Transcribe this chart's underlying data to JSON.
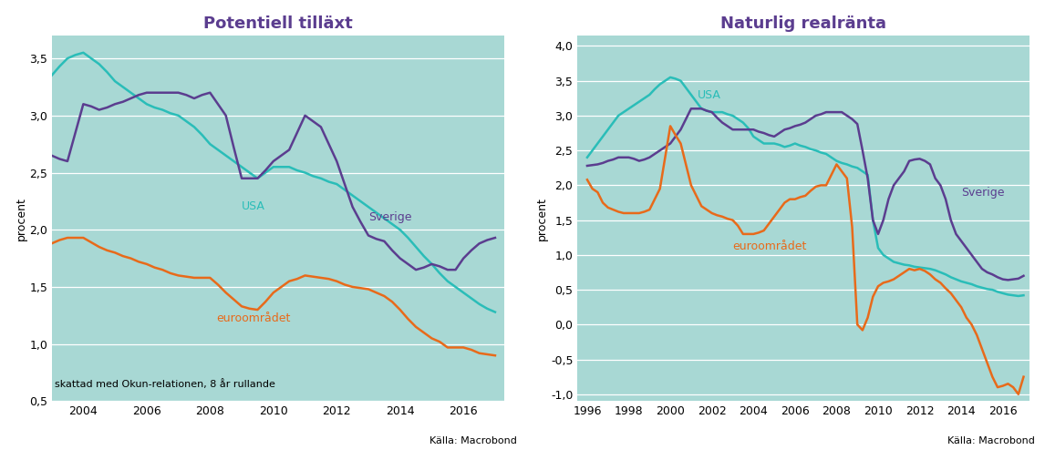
{
  "title1": "Potentiell tilläxt",
  "title2": "Naturlig realränta",
  "ylabel": "procent",
  "bg_color": "#A8D8D4",
  "teal_color": "#2ABDB8",
  "purple_color": "#5B3D8F",
  "orange_color": "#E86A1A",
  "source": "Källa: Macrobond",
  "note1": "skattad med Okun-relationen, 8 år rullande",
  "left_xlim": [
    2003.0,
    2017.3
  ],
  "left_ylim": [
    0.5,
    3.7
  ],
  "left_yticks": [
    0.5,
    1.0,
    1.5,
    2.0,
    2.5,
    3.0,
    3.5
  ],
  "right_xlim": [
    1995.5,
    2017.3
  ],
  "right_ylim": [
    -1.1,
    4.15
  ],
  "right_yticks": [
    -1.0,
    -0.5,
    0.0,
    0.5,
    1.0,
    1.5,
    2.0,
    2.5,
    3.0,
    3.5,
    4.0
  ],
  "left_usa_x": [
    2003.0,
    2003.25,
    2003.5,
    2003.75,
    2004.0,
    2004.25,
    2004.5,
    2004.75,
    2005.0,
    2005.25,
    2005.5,
    2005.75,
    2006.0,
    2006.25,
    2006.5,
    2006.75,
    2007.0,
    2007.25,
    2007.5,
    2007.75,
    2008.0,
    2008.25,
    2008.5,
    2008.75,
    2009.0,
    2009.25,
    2009.5,
    2009.75,
    2010.0,
    2010.25,
    2010.5,
    2010.75,
    2011.0,
    2011.25,
    2011.5,
    2011.75,
    2012.0,
    2012.25,
    2012.5,
    2012.75,
    2013.0,
    2013.25,
    2013.5,
    2013.75,
    2014.0,
    2014.25,
    2014.5,
    2014.75,
    2015.0,
    2015.25,
    2015.5,
    2015.75,
    2016.0,
    2016.25,
    2016.5,
    2016.75,
    2017.0
  ],
  "left_usa_y": [
    3.35,
    3.43,
    3.5,
    3.53,
    3.55,
    3.5,
    3.45,
    3.38,
    3.3,
    3.25,
    3.2,
    3.15,
    3.1,
    3.07,
    3.05,
    3.02,
    3.0,
    2.95,
    2.9,
    2.83,
    2.75,
    2.7,
    2.65,
    2.6,
    2.55,
    2.5,
    2.45,
    2.5,
    2.55,
    2.55,
    2.55,
    2.52,
    2.5,
    2.47,
    2.45,
    2.42,
    2.4,
    2.35,
    2.3,
    2.25,
    2.2,
    2.15,
    2.1,
    2.05,
    2.0,
    1.93,
    1.85,
    1.77,
    1.7,
    1.62,
    1.55,
    1.5,
    1.45,
    1.4,
    1.35,
    1.31,
    1.28
  ],
  "left_sverige_x": [
    2003.0,
    2003.25,
    2003.5,
    2003.75,
    2004.0,
    2004.25,
    2004.5,
    2004.75,
    2005.0,
    2005.25,
    2005.5,
    2005.75,
    2006.0,
    2006.25,
    2006.5,
    2006.75,
    2007.0,
    2007.25,
    2007.5,
    2007.75,
    2008.0,
    2008.25,
    2008.5,
    2008.75,
    2009.0,
    2009.25,
    2009.5,
    2009.75,
    2010.0,
    2010.25,
    2010.5,
    2010.75,
    2011.0,
    2011.25,
    2011.5,
    2011.75,
    2012.0,
    2012.25,
    2012.5,
    2012.75,
    2013.0,
    2013.25,
    2013.5,
    2013.75,
    2014.0,
    2014.25,
    2014.5,
    2014.75,
    2015.0,
    2015.25,
    2015.5,
    2015.75,
    2016.0,
    2016.25,
    2016.5,
    2016.75,
    2017.0
  ],
  "left_sverige_y": [
    2.65,
    2.62,
    2.6,
    2.85,
    3.1,
    3.08,
    3.05,
    3.07,
    3.1,
    3.12,
    3.15,
    3.18,
    3.2,
    3.2,
    3.2,
    3.2,
    3.2,
    3.18,
    3.15,
    3.18,
    3.2,
    3.1,
    3.0,
    2.72,
    2.45,
    2.45,
    2.45,
    2.52,
    2.6,
    2.65,
    2.7,
    2.85,
    3.0,
    2.95,
    2.9,
    2.75,
    2.6,
    2.4,
    2.2,
    2.07,
    1.95,
    1.92,
    1.9,
    1.82,
    1.75,
    1.7,
    1.65,
    1.67,
    1.7,
    1.68,
    1.65,
    1.65,
    1.75,
    1.82,
    1.88,
    1.91,
    1.93
  ],
  "left_euro_x": [
    2003.0,
    2003.25,
    2003.5,
    2003.75,
    2004.0,
    2004.25,
    2004.5,
    2004.75,
    2005.0,
    2005.25,
    2005.5,
    2005.75,
    2006.0,
    2006.25,
    2006.5,
    2006.75,
    2007.0,
    2007.25,
    2007.5,
    2007.75,
    2008.0,
    2008.25,
    2008.5,
    2008.75,
    2009.0,
    2009.25,
    2009.5,
    2009.75,
    2010.0,
    2010.25,
    2010.5,
    2010.75,
    2011.0,
    2011.25,
    2011.5,
    2011.75,
    2012.0,
    2012.25,
    2012.5,
    2012.75,
    2013.0,
    2013.25,
    2013.5,
    2013.75,
    2014.0,
    2014.25,
    2014.5,
    2014.75,
    2015.0,
    2015.25,
    2015.5,
    2015.75,
    2016.0,
    2016.25,
    2016.5,
    2016.75,
    2017.0
  ],
  "left_euro_y": [
    1.88,
    1.91,
    1.93,
    1.93,
    1.93,
    1.89,
    1.85,
    1.82,
    1.8,
    1.77,
    1.75,
    1.72,
    1.7,
    1.67,
    1.65,
    1.62,
    1.6,
    1.59,
    1.58,
    1.58,
    1.58,
    1.52,
    1.45,
    1.39,
    1.33,
    1.31,
    1.3,
    1.37,
    1.45,
    1.5,
    1.55,
    1.57,
    1.6,
    1.59,
    1.58,
    1.57,
    1.55,
    1.52,
    1.5,
    1.49,
    1.48,
    1.45,
    1.42,
    1.37,
    1.3,
    1.22,
    1.15,
    1.1,
    1.05,
    1.02,
    0.97,
    0.97,
    0.97,
    0.95,
    0.92,
    0.91,
    0.9
  ],
  "right_usa_x": [
    1996.0,
    1996.25,
    1996.5,
    1996.75,
    1997.0,
    1997.25,
    1997.5,
    1997.75,
    1998.0,
    1998.25,
    1998.5,
    1998.75,
    1999.0,
    1999.25,
    1999.5,
    1999.75,
    2000.0,
    2000.25,
    2000.5,
    2000.75,
    2001.0,
    2001.25,
    2001.5,
    2001.75,
    2002.0,
    2002.25,
    2002.5,
    2002.75,
    2003.0,
    2003.25,
    2003.5,
    2003.75,
    2004.0,
    2004.25,
    2004.5,
    2004.75,
    2005.0,
    2005.25,
    2005.5,
    2005.75,
    2006.0,
    2006.25,
    2006.5,
    2006.75,
    2007.0,
    2007.25,
    2007.5,
    2007.75,
    2008.0,
    2008.25,
    2008.5,
    2008.75,
    2009.0,
    2009.25,
    2009.5,
    2009.75,
    2010.0,
    2010.25,
    2010.5,
    2010.75,
    2011.0,
    2011.25,
    2011.5,
    2011.75,
    2012.0,
    2012.25,
    2012.5,
    2012.75,
    2013.0,
    2013.25,
    2013.5,
    2013.75,
    2014.0,
    2014.25,
    2014.5,
    2014.75,
    2015.0,
    2015.25,
    2015.5,
    2015.75,
    2016.0,
    2016.25,
    2016.5,
    2016.75,
    2017.0
  ],
  "right_usa_y": [
    2.4,
    2.5,
    2.6,
    2.7,
    2.8,
    2.9,
    3.0,
    3.05,
    3.1,
    3.15,
    3.2,
    3.25,
    3.3,
    3.38,
    3.45,
    3.5,
    3.55,
    3.53,
    3.5,
    3.4,
    3.3,
    3.2,
    3.1,
    3.07,
    3.05,
    3.05,
    3.05,
    3.02,
    3.0,
    2.95,
    2.9,
    2.82,
    2.7,
    2.65,
    2.6,
    2.6,
    2.6,
    2.58,
    2.55,
    2.57,
    2.6,
    2.57,
    2.55,
    2.52,
    2.5,
    2.47,
    2.45,
    2.4,
    2.35,
    2.32,
    2.3,
    2.27,
    2.25,
    2.2,
    2.15,
    1.5,
    1.1,
    1.0,
    0.95,
    0.9,
    0.88,
    0.86,
    0.85,
    0.83,
    0.82,
    0.81,
    0.8,
    0.78,
    0.75,
    0.72,
    0.68,
    0.65,
    0.62,
    0.6,
    0.58,
    0.55,
    0.53,
    0.51,
    0.5,
    0.47,
    0.45,
    0.43,
    0.42,
    0.41,
    0.42
  ],
  "right_sverige_x": [
    1996.0,
    1996.25,
    1996.5,
    1996.75,
    1997.0,
    1997.25,
    1997.5,
    1997.75,
    1998.0,
    1998.25,
    1998.5,
    1998.75,
    1999.0,
    1999.25,
    1999.5,
    1999.75,
    2000.0,
    2000.25,
    2000.5,
    2000.75,
    2001.0,
    2001.25,
    2001.5,
    2001.75,
    2002.0,
    2002.25,
    2002.5,
    2002.75,
    2003.0,
    2003.25,
    2003.5,
    2003.75,
    2004.0,
    2004.25,
    2004.5,
    2004.75,
    2005.0,
    2005.25,
    2005.5,
    2005.75,
    2006.0,
    2006.25,
    2006.5,
    2006.75,
    2007.0,
    2007.25,
    2007.5,
    2007.75,
    2008.0,
    2008.25,
    2008.5,
    2008.75,
    2009.0,
    2009.25,
    2009.5,
    2009.75,
    2010.0,
    2010.25,
    2010.5,
    2010.75,
    2011.0,
    2011.25,
    2011.5,
    2011.75,
    2012.0,
    2012.25,
    2012.5,
    2012.75,
    2013.0,
    2013.25,
    2013.5,
    2013.75,
    2014.0,
    2014.25,
    2014.5,
    2014.75,
    2015.0,
    2015.25,
    2015.5,
    2015.75,
    2016.0,
    2016.25,
    2016.5,
    2016.75,
    2017.0
  ],
  "right_sverige_y": [
    2.28,
    2.29,
    2.3,
    2.32,
    2.35,
    2.37,
    2.4,
    2.4,
    2.4,
    2.38,
    2.35,
    2.37,
    2.4,
    2.45,
    2.5,
    2.55,
    2.6,
    2.7,
    2.8,
    2.95,
    3.1,
    3.1,
    3.1,
    3.07,
    3.05,
    2.97,
    2.9,
    2.85,
    2.8,
    2.8,
    2.8,
    2.8,
    2.8,
    2.77,
    2.75,
    2.72,
    2.7,
    2.75,
    2.8,
    2.82,
    2.85,
    2.87,
    2.9,
    2.95,
    3.0,
    3.02,
    3.05,
    3.05,
    3.05,
    3.05,
    3.0,
    2.95,
    2.88,
    2.5,
    2.1,
    1.5,
    1.3,
    1.5,
    1.8,
    2.0,
    2.1,
    2.2,
    2.35,
    2.37,
    2.38,
    2.35,
    2.3,
    2.1,
    2.0,
    1.8,
    1.5,
    1.3,
    1.2,
    1.1,
    1.0,
    0.9,
    0.8,
    0.75,
    0.72,
    0.68,
    0.65,
    0.64,
    0.65,
    0.66,
    0.7
  ],
  "right_euro_x": [
    1996.0,
    1996.25,
    1996.5,
    1996.75,
    1997.0,
    1997.25,
    1997.5,
    1997.75,
    1998.0,
    1998.25,
    1998.5,
    1998.75,
    1999.0,
    1999.25,
    1999.5,
    1999.75,
    2000.0,
    2000.25,
    2000.5,
    2000.75,
    2001.0,
    2001.25,
    2001.5,
    2001.75,
    2002.0,
    2002.25,
    2002.5,
    2002.75,
    2003.0,
    2003.25,
    2003.5,
    2003.75,
    2004.0,
    2004.25,
    2004.5,
    2004.75,
    2005.0,
    2005.25,
    2005.5,
    2005.75,
    2006.0,
    2006.25,
    2006.5,
    2006.75,
    2007.0,
    2007.25,
    2007.5,
    2007.75,
    2008.0,
    2008.25,
    2008.5,
    2008.75,
    2009.0,
    2009.25,
    2009.5,
    2009.75,
    2010.0,
    2010.25,
    2010.5,
    2010.75,
    2011.0,
    2011.25,
    2011.5,
    2011.75,
    2012.0,
    2012.25,
    2012.5,
    2012.75,
    2013.0,
    2013.25,
    2013.5,
    2013.75,
    2014.0,
    2014.25,
    2014.5,
    2014.75,
    2015.0,
    2015.25,
    2015.5,
    2015.75,
    2016.0,
    2016.25,
    2016.5,
    2016.75,
    2017.0
  ],
  "right_euro_y": [
    2.08,
    1.95,
    1.9,
    1.75,
    1.68,
    1.65,
    1.62,
    1.6,
    1.6,
    1.6,
    1.6,
    1.62,
    1.65,
    1.8,
    1.95,
    2.4,
    2.85,
    2.72,
    2.6,
    2.3,
    2.0,
    1.85,
    1.7,
    1.65,
    1.6,
    1.57,
    1.55,
    1.52,
    1.5,
    1.42,
    1.3,
    1.3,
    1.3,
    1.32,
    1.35,
    1.45,
    1.55,
    1.65,
    1.75,
    1.8,
    1.8,
    1.83,
    1.85,
    1.92,
    1.98,
    2.0,
    2.0,
    2.15,
    2.3,
    2.2,
    2.1,
    1.4,
    0.0,
    -0.08,
    0.1,
    0.4,
    0.55,
    0.6,
    0.62,
    0.65,
    0.7,
    0.75,
    0.8,
    0.78,
    0.8,
    0.77,
    0.72,
    0.65,
    0.6,
    0.52,
    0.45,
    0.35,
    0.25,
    0.1,
    0.0,
    -0.15,
    -0.35,
    -0.55,
    -0.75,
    -0.9,
    -0.88,
    -0.85,
    -0.9,
    -1.0,
    -0.75
  ]
}
